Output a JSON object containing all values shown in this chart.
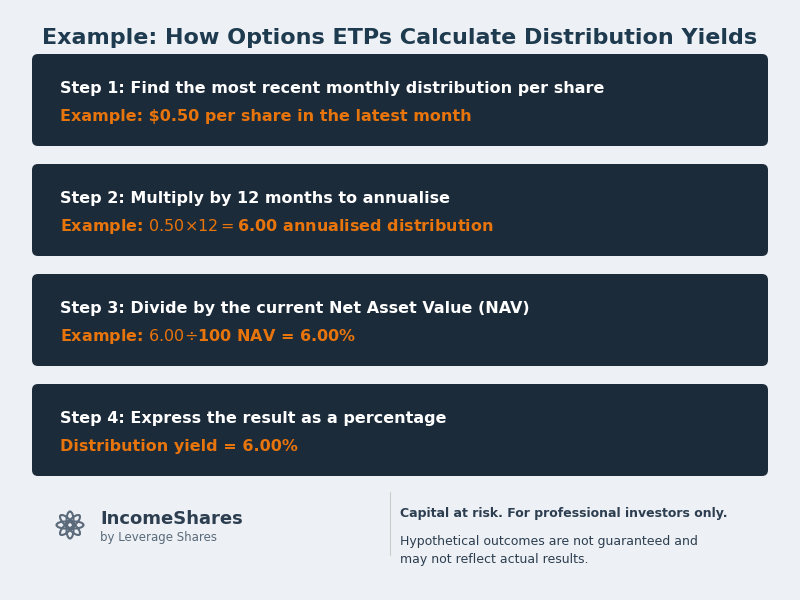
{
  "title": "Example: How Options ETPs Calculate Distribution Yields",
  "title_color": "#1e3a4f",
  "title_fontsize": 16,
  "bg_color": "#edf0f4",
  "box_bg_color": "#1c2b3a",
  "steps": [
    {
      "main_text": "Step 1: Find the most recent monthly distribution per share",
      "example_text": "Example: $0.50 per share in the latest month"
    },
    {
      "main_text": "Step 2: Multiply by 12 months to annualise",
      "example_text": "Example: $0.50 × 12 = $6.00 annualised distribution"
    },
    {
      "main_text": "Step 3: Divide by the current Net Asset Value (NAV)",
      "example_text": "Example: $6.00 ÷ $100 NAV = 6.00%"
    },
    {
      "main_text": "Step 4: Express the result as a percentage",
      "example_text": "Distribution yield = 6.00%"
    }
  ],
  "main_text_color": "#ffffff",
  "example_text_color": "#e8740c",
  "main_fontsize": 11.5,
  "example_fontsize": 11.5,
  "footer_logo_text": "IncomeShares",
  "footer_logo_sub": "by Leverage Shares",
  "footer_disclaimer_bold": "Capital at risk. For professional investors only.",
  "footer_disclaimer_normal": "Hypothetical outcomes are not guaranteed and\nmay not reflect actual results.",
  "footer_text_color": "#2c3e50",
  "logo_color": "#5a6a7a"
}
